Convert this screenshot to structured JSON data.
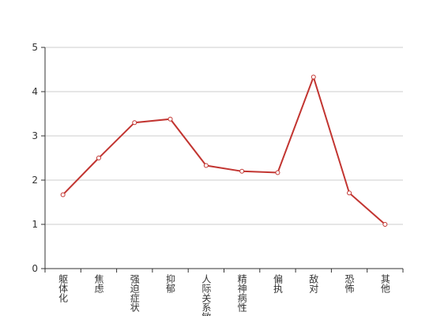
{
  "chart_data": {
    "type": "line",
    "categories": [
      "躯体化",
      "焦虑",
      "强迫症状",
      "抑郁",
      "人际关系敏感",
      "精神病性",
      "偏执",
      "敌对",
      "恐怖",
      "其他"
    ],
    "series": [
      {
        "color": "#c23531",
        "values": [
          1.67,
          2.5,
          3.3,
          3.38,
          2.33,
          2.2,
          2.17,
          4.33,
          1.71,
          1.0
        ]
      }
    ],
    "ylim": [
      0,
      5
    ],
    "yticks": [
      0,
      1,
      2,
      3,
      4,
      5
    ],
    "grid": true
  }
}
